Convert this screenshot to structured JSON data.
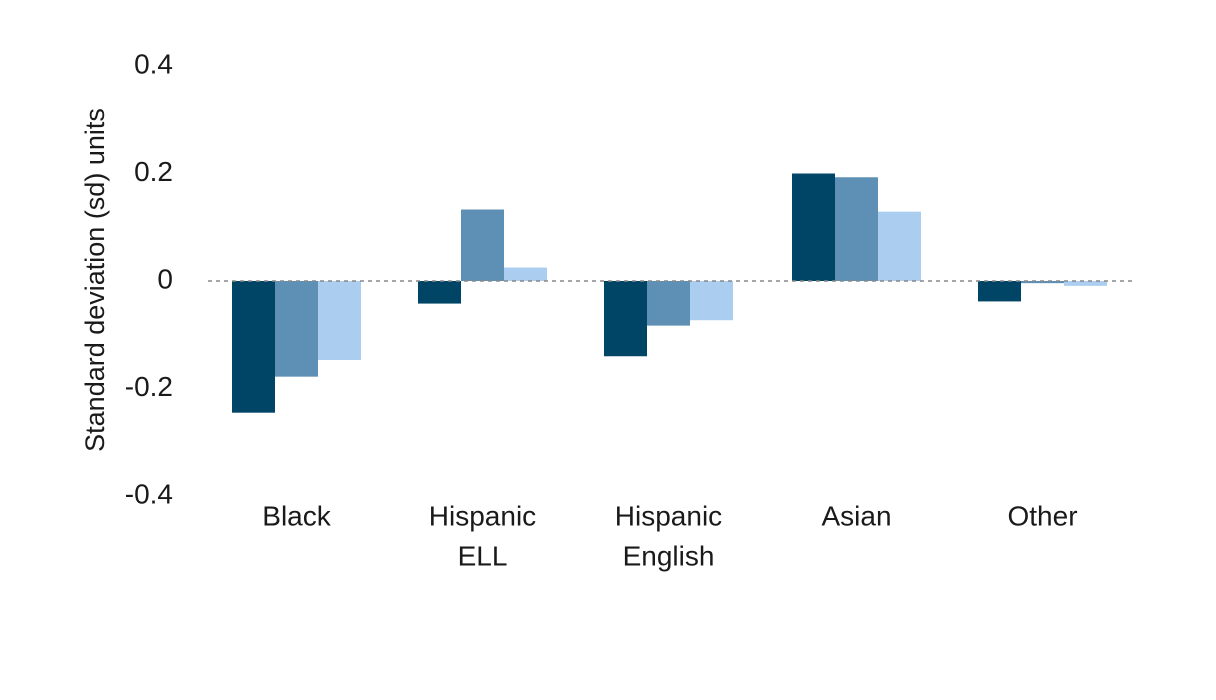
{
  "chart_data": {
    "type": "bar",
    "ylabel": "Standard deviation (sd) units",
    "xlabel": "",
    "ylim": [
      -0.4,
      0.4
    ],
    "yticks": [
      0.4,
      0.2,
      0,
      -0.2,
      -0.4
    ],
    "ytick_labels": [
      "0.4",
      "0.2",
      "0",
      "-0.2",
      "-0.4"
    ],
    "categories": [
      [
        "Black"
      ],
      [
        "Hispanic",
        "ELL"
      ],
      [
        "Hispanic",
        "English"
      ],
      [
        "Asian"
      ],
      [
        "Other"
      ]
    ],
    "series": [
      {
        "color": "#004466",
        "values": [
          -0.245,
          -0.042,
          -0.14,
          0.2,
          -0.038
        ]
      },
      {
        "color": "#5e90b6",
        "values": [
          -0.178,
          0.133,
          -0.083,
          0.193,
          -0.004
        ]
      },
      {
        "color": "#abcdef",
        "values": [
          -0.147,
          0.025,
          -0.073,
          0.129,
          -0.009
        ]
      }
    ],
    "zero_line": {
      "style": "dashed",
      "color": "#888888"
    },
    "grid": false,
    "legend": "none"
  }
}
